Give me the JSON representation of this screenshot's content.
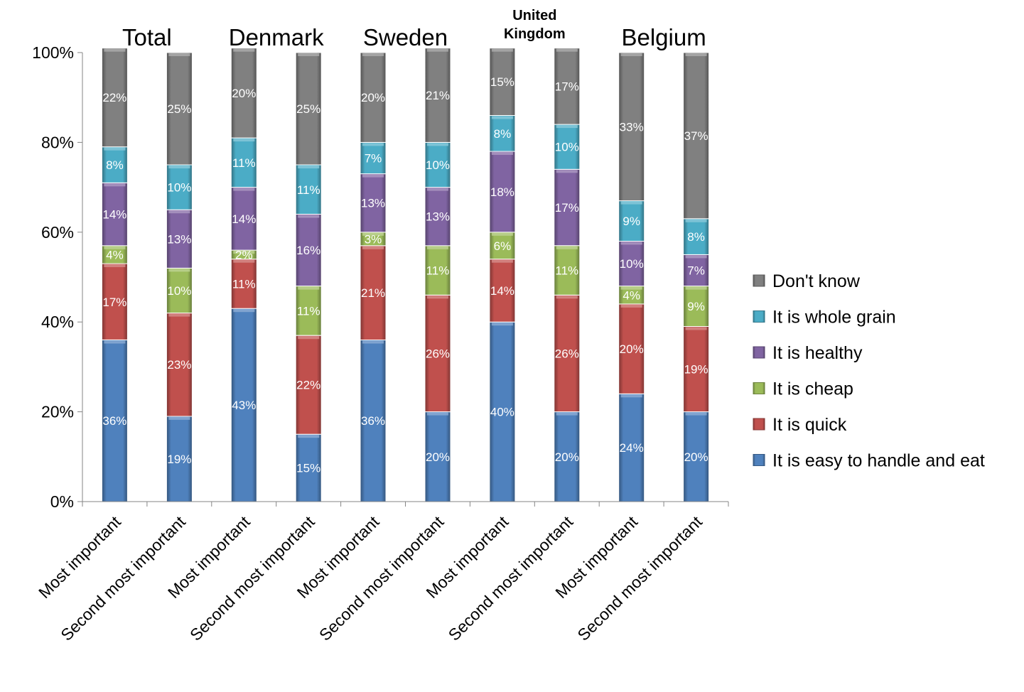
{
  "chart_data": {
    "type": "bar",
    "stacked": true,
    "percent": true,
    "title": "",
    "xlabel": "",
    "ylabel": "",
    "ylim": [
      0,
      100
    ],
    "y_ticks": [
      "0%",
      "20%",
      "40%",
      "60%",
      "80%",
      "100%"
    ],
    "grid": false,
    "legend_position": "right",
    "groups": [
      {
        "label": "Total",
        "bold": false,
        "bars": 2
      },
      {
        "label": "Denmark",
        "bold": false,
        "bars": 2
      },
      {
        "label": "Sweden",
        "bold": false,
        "bars": 2
      },
      {
        "label": "United\nKingdom",
        "bold": true,
        "bars": 2
      },
      {
        "label": "Belgium",
        "bold": false,
        "bars": 2
      }
    ],
    "categories": [
      "Most important",
      "Second most important",
      "Most important",
      "Second most important",
      "Most important",
      "Second most important",
      "Most important",
      "Second most important",
      "Most important",
      "Second most important"
    ],
    "series": [
      {
        "name": "It is easy to handle and eat",
        "color": "#4F81BD",
        "values": [
          36,
          19,
          43,
          15,
          36,
          20,
          40,
          20,
          24,
          20
        ]
      },
      {
        "name": "It is quick",
        "color": "#C0504D",
        "values": [
          17,
          23,
          11,
          22,
          21,
          26,
          14,
          26,
          20,
          19
        ]
      },
      {
        "name": "It is cheap",
        "color": "#9BBB59",
        "values": [
          4,
          10,
          2,
          11,
          3,
          11,
          6,
          11,
          4,
          9
        ]
      },
      {
        "name": "It is healthy",
        "color": "#8064A2",
        "values": [
          14,
          13,
          14,
          16,
          13,
          13,
          18,
          17,
          10,
          7
        ]
      },
      {
        "name": "It is whole grain",
        "color": "#4BACC6",
        "values": [
          8,
          10,
          11,
          11,
          7,
          10,
          8,
          10,
          9,
          8
        ]
      },
      {
        "name": "Don't know",
        "color": "#808080",
        "values": [
          22,
          25,
          20,
          25,
          20,
          21,
          15,
          17,
          33,
          37
        ]
      }
    ],
    "data_labels": [
      [
        "36%",
        "19%",
        "43%",
        "15%",
        "36%",
        "20%",
        "40%",
        "20%",
        "24%",
        "20%"
      ],
      [
        "17%",
        "23%",
        "11%",
        "22%",
        "21%",
        "26%",
        "14%",
        "26%",
        "20%",
        "19%"
      ],
      [
        "4%",
        "10%",
        "2%",
        "11%",
        "3%",
        "11%",
        "6%",
        "11%",
        "4%",
        "9%"
      ],
      [
        "14%",
        "13%",
        "14%",
        "16%",
        "13%",
        "13%",
        "18%",
        "17%",
        "10%",
        "7%"
      ],
      [
        "8%",
        "10%",
        "11%",
        "11%",
        "7%",
        "10%",
        "8%",
        "10%",
        "9%",
        "8%"
      ],
      [
        "22%",
        "25%",
        "20%",
        "25%",
        "20%",
        "21%",
        "15%",
        "17%",
        "33%",
        "37%"
      ]
    ]
  }
}
